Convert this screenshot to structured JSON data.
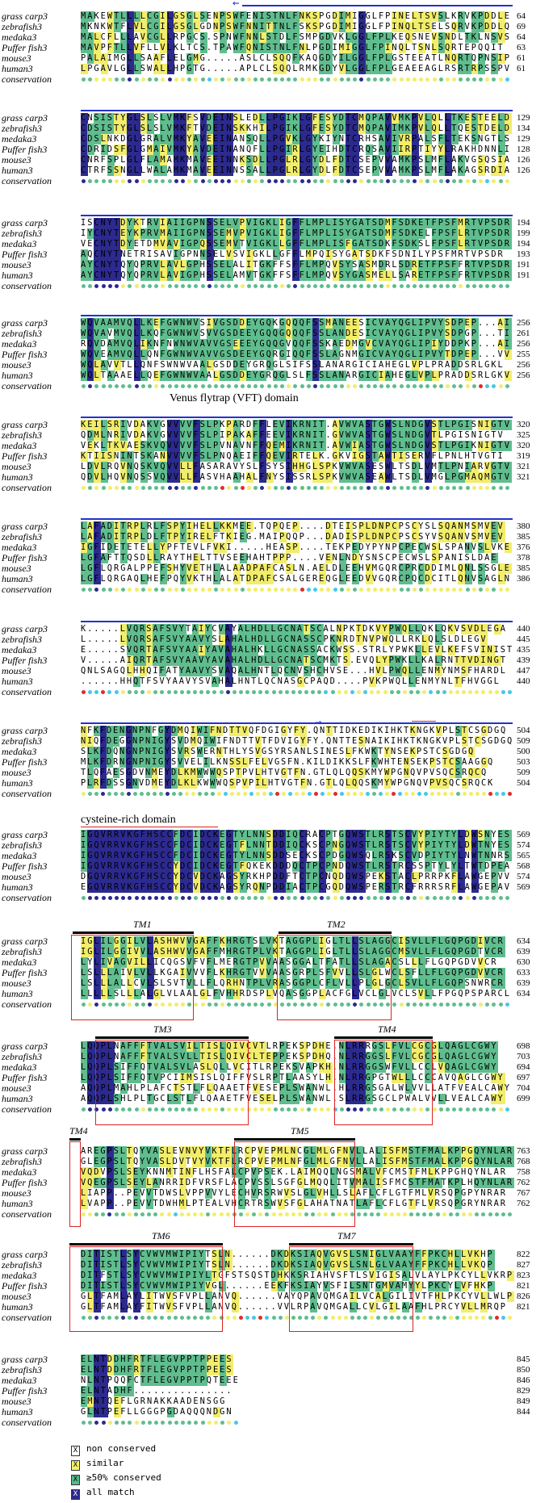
{
  "species": [
    "grass carp3",
    "zebrafish3",
    "medaka3",
    "Puffer fish3",
    "mouse3",
    "human3"
  ],
  "conservation_label": "conservation",
  "blocks": [
    {
      "rows": [
        "MAKEWTLLLLCGILGSGLSENPSWFENISTNLFNKSPGDIMIGGLFPINELTSVSLKRVKPDDLE",
        "MKNKWTFLVLCGILGSGLGDNPSWFNNITTNLFSKSPGDIMIGGLFPINQLTSELSQRVKPDDLQ",
        "MALCFLLLAVCGLLRPGCS.SPNWFNNLSTDLFSMPGDVKLGGLFPLKEQSNEVSNDLTKLNSVS",
        "MAVPFTLLVFLLVLKLTCS.TPAWFQNISTNLFNLPGDIMIGGLFPINQLTSNLSQRTEPQQIT",
        "PALAIMGLLSAAFLELGMG.....ASLCLSQQFKAQGDYILGGLFPLGSTEEATLNQRTQPNSIP",
        "LPGAVLGLLSWALLHPGTG.....APLCLSQQLRMKGDYVLGGLFPLGEAEEAGLRSRTRPSSPV"
      ],
      "nums": [
        "64",
        "69",
        "64",
        "63",
        "61",
        "61"
      ]
    },
    {
      "rows": [
        "CNSISTYGLSLSLVMKFSVDEINSLEDLLPGIKLGFESYDTCMQPAVVMKPVLQLLTKESTEELD",
        "CDSISTYGLSLSLVMKFTVDEINSKKHILPGIKLGFESYDTCMQPAVIMKPVLQLLTQESTDELD",
        "CDSLNKDGLGRALVMKYAVEEINANSQLLPGVKLGYKIYNTCRHSAVIVRPALSFLTEKSNGTLS",
        "CDRIDSFGLGMAIVMKYAVDEINANQFLLPGIRLGYEIHDTCRQSAVIIRPTIYYLRAKHDNNLI",
        "CNRFSPLGLFLAMAMKMAVEEINNKSDLLPGLRLGYDLFDTCSEPVVAMKPSLMFLAKVGSQSIA",
        "CTRFSSNGLLWALAMKMAVEEINNSSALLPGLRLGYDLFDTCSEPVVAMKPSLMFLAKAGSRDIA"
      ],
      "nums": [
        "129",
        "134",
        "129",
        "128",
        "126",
        "126"
      ]
    },
    {
      "rows": [
        "ISCNYTDYKTRVIAIIGPNSSELVPVIGKLIGFFLMPLISYGATSDMFSDKETFPSFMRTVPSDR",
        "IYCNYTEYKPRVMAIIGPNSSEMVPVIGKLIGFFLMPLISYGATSDMFSDKELFPSFLRTVPSDR",
        "VECNYTDYETDMVAVIGPQSSEMVTVIGKLLGFFLMPLISFGATSDKFSDKSLFPSFLRTVPSDR",
        "AQCNYTNETRISAVIGPNNSELVSVIGKLLGFFLMPQISYGATSDKFSDNILYPSFMRTVPSDR",
        "AYCNYTQYQPRVLAVLGPHSSELALITGKFFSFFLMPQVSYSASMDRLSDRETFPSFFRTVPSDR",
        "AYCNYTQYQPRVLAVIGPHSSELAMVTGKFFSFFLMPQVSYGASMELLSARETFPSFFRTVPSDR"
      ],
      "nums": [
        "194",
        "199",
        "194",
        "193",
        "191",
        "191"
      ]
    },
    {
      "rows": [
        "WQVAAMVQLLKEFGWNWVSIVGSDDEYGQKGQQQFSSMANEESICVAYQGLIPVYSDPEP...AI",
        "WQVAVMVQLLKQFGWNWVSVVGSDEEYGQQGQQQFSSLANDESICVAYQGLIPVYSDPGP...TI",
        "RQVDAMVQLIKNFNWNWVAVVGSEEEYGQQGVQQFSSKAEDMGVCVAYQGLIPIYDDPKP...AI",
        "WQVEAMVQLLQNFGWNWVAVVGSDEEYGQRGIQQFSSLAGNMGICVAYQGLIPVYTDPEP...VV",
        "WQLAVVTLLQNFSWNWVAALGSDDEYGRQGLSIFSSLANARGICIAHEGLVPLPRADDSRLGKL",
        "WQLTAAAELLQEFGWNWVAALGSDDEYGRQGLSLFSSLANARGICIAHEGLVPLPRADDSRLGKV"
      ],
      "nums": [
        "256",
        "261",
        "256",
        "255",
        "256",
        "256"
      ]
    },
    {
      "rows": [
        "KEILSRIVDAKVGVVVVFSLPKPARDFFLEVIKRNIT.AVWVASTGWSLNDGVSTLPGISNIGTV",
        "QDMLNRIVDAKVGVVVVFSLPIPAKAFFEEVIKRNIT.GVWVASTGWSLNDGVTLPGISNIGTV",
        "VEKLTKVAESKVQVVVVFSLPVNAVNFFQEMIKRNIT.AVWIASTGWSLNDGVSTLPGIKNIGTV",
        "KTIISNINTSKANVVVVFSLPNQAEIFFQEVIRTELK.GKVIGSTAWTISERVFLPNLHTVGTI",
        "LDVLRQVNQSKVQVVLLFASARAVYSLFSYSIHHGLSPKVWVASESWLTSDLVMTLPNIARVGTV",
        "QDVLHQVNQSSVQVVLLFASVHAAHALFNYSISSRLSPKVWVASEAWLTSDLVMGLPGMAQMGTV"
      ],
      "nums": [
        "320",
        "325",
        "320",
        "319",
        "321",
        "321"
      ]
    },
    {
      "rows": [
        "LAFADITRPLRLFSPYIHELLKKMEE.TQPQEP....DTEISPLDNPCPSCYSLSQANMSMVEV",
        "LAFADITRPLDLFTPYIRELFTKIEG.MAIPQQP...DADISPLDNPCPSCSYVSQANVSMVEV",
        "IGFIDETETELLYPFTEVLFVKI.....HEASP....TEKPEDYPYNPCPECWSLSPANVSLVKE",
        "LGFAFTTQSDLLRAYTHELTTVSEEHAHTPPP....VENLNDYSNSCPECWSLSPANISLDAE",
        "LGFLQRGALPPEFSHYVETHLALAADPAFCASLN.AELDLEEHVMGQRCPRCDDIMLQNLSSGLE",
        "LGFLQRGAQLHEFPQYVKTHLALATDPAFCSALGEREQGLEEDVVGQRCPQCDCITLQNVSAGLN"
      ],
      "nums": [
        "380",
        "385",
        "376",
        "378",
        "385",
        "386"
      ]
    },
    {
      "rows": [
        "K.....LVQRSAFSVYTAIYCVAYALHDLLGCNATSCALNPKTDKVYPWQLLQKLQKVSVDLEGA",
        "L.....LVQRSAFSVYAAVYSLAHALHDLLGCNASSCPKNRDTNVPWQLLRKLQLSLDLEGV",
        "E.....SVQRTAFSVYAAIYAVAHALHKLLGCNASSACKWSS.STRLYPWKLLEVLKEFSVINIST",
        "V.....AIQRTAFSVYAAVYAVAHALHDLLGCNATSCMKTS.EVQLYPWKLLKALRNTTVDINGT",
        "QNLSAGQLHHQIFATYAAVYSVAQALHNTLQCNVSHCHVSE...HVLPWQLLENMYNMSFHARDL",
        "......HHQTFSVYAAVYSVAHALHNTLQCNASGCPAQD....PVKPWQLLENMYNLTFHVGGL"
      ],
      "nums": [
        "440",
        "445",
        "435",
        "439",
        "447",
        "440"
      ]
    },
    {
      "rows": [
        "NFKFDENGNPNFGYDMQIWIFNDTTVQFDGIGYFY.QNTTIDKEDIKIHKTKNGKVPLSTCSGDGQ",
        "NIQFDEGGNPNIGYSVDMQIWIFNDTTVTFDVIGYFY.QNTTESNAIKIHKTKNGKVPLSTCSGDGQ",
        "SLKFDQNGNPNIGYSVRSWERNTHLYSVGSYRSANLSINESLFKWKTYNSEKPSTCSGDGQ",
        "MLKFDRNGNPNIGYSVVELILKNSSLFELVGSFN.KILDIKKSLFKWHTENSEKPSTCSAAGGQ",
        "TLQFAESGDVNMEYDLKMWWWQSPTPVLHTVGTFN.GTLQLQQSKMYWPGNQVPVSQCSRQCQ",
        "PLRFDSSGNVDMEYDLKLKWWWQSPVPILHTVGTFN.GTLQLQQSKMYWPGNQVPVSQCSRQCK"
      ],
      "nums": [
        "504",
        "509",
        "500",
        "503",
        "509",
        "504"
      ]
    },
    {
      "rows": [
        "IGQVRRVKGFHSCCFDCIDCKEGTYLNNSDDIQCRACPTGQWSTLRSTSCVYPIYTYLDWSNYES",
        "IGQVRRVKGFHSCCFDCIDCKEGTFLNNTDDIQCKSCPNGQWSTLRSTSCVYPIYTYLDWTNYES",
        "IGQVRRVKGFHSCCFDCIDCKEGTYLNNSDDSECKSCPDGQWSQLRSKSCVDPIYTYLNWTNNRS",
        "IGQVRRVKGFHSCCYDCIDCKEGTFQKEKDDDQCTPCPNDQWSTLRSTRCSSPTYLYLTWTDPEA",
        "DGQVRRVKGFHSCCYDCVDCKAGSYRKHPDDFTCTPCNQDQWSPEKSTACLPRRPKFLAWGEPVV",
        "EGQVRRVKGFHSCCYDCVDCKAGSYRQNPDDIACTPCGQDQWSPERSTRCFRRRSRFLAWGEPAV"
      ],
      "nums": [
        "569",
        "574",
        "565",
        "568",
        "574",
        "569"
      ]
    },
    {
      "rows": [
        "IGLILGGILVLASHWVVGAFFKHRGTSLVKTAGGPLIGLTLLSLAGGCISVLLFLGQPGDIVCR",
        "IGLILGGIVVLASHWVVGAFFMHRGTPLVKTAGGPLIGLTLLSLAGGCMSVLLFLGQPGDTVCR",
        "LYLIVAGVILLICQGSVFVFLMERGTPVVAASGGALTFATLLSLAGACSLLLFLGQPGDVVCR",
        "LSLLLAIVLVLLKGAIVVVFLKHRGTVVVAASGRPLSFVVLLSLGLWCLSFLLFLGQPGDVVCR",
        "LSLLLALLCVLSLSVTVLLFLQRHNTPLVRASGGPLCFLVLLPLGLGCLSVLLFLGQPSNWRCR",
        "LLLLLSLLLALGLVLAALGLFVHHRDSPLVQASGGPLACFGLVCLGLVCLSVLLFPGQPSPARCL"
      ],
      "nums": [
        "634",
        "639",
        "630",
        "633",
        "639",
        "634"
      ]
    },
    {
      "rows": [
        "LQQPLNAFFFTVALSVILTISLQIVCVTLRPEKSPDHE.NLRRRGSLFVLCGCGLQAGLCGWY",
        "LQQPLNAFFFTVALSVLLTISLQIVCLTEPPEKSPDHQ.NLRRGGSLFVLCGCGLQAGLCGWY",
        "LQQPLSIFFQTVALSVLASLQLLVCITLRPEKSVAPKH.NLRRGGSWFVLLCCLVQAGLCGWY",
        "LQQPLSIFFQTVPCIIMSISLQIFFVSLRPTLAASYLH.NLRRGPGTWLLLCCCAVQAGLCGWY",
        "AQQPLMAHLPLAFCTSTLFLQAAETFVESEPLSWANWL.HLRRGSGALWLVVLLATFVEALCAWY",
        "AQQPLSHLPLTGCLSTLFLQAAETFVESELPLSWANWL.SLRRGSGCLPWALVVLLVEALCAWY"
      ],
      "nums": [
        "698",
        "703",
        "694",
        "697",
        "704",
        "699"
      ]
    },
    {
      "rows": [
        "AREGPSLTQYVASLEVNVYVKTFLRCPVEPMLNCGLMLGFNVLLALISFMSTFMALKPPGQYNLAR",
        "GLEGPSLTQYVASLDVTVYVKTFLRCPVEPMLNFGLMLGFNVLLALISFMSTFMALKPPGQYNLAR",
        "VQDVPSLSEYKNNMTINFLHSFALCPVPSEK.LAIMQQLNGSMALVFCMSTFMLKPPGHQYNLAR",
        "VQEGPSLSEYLANRRIDFVRSFLACPVSSLSGFGLMQQLITVMALISFMCSTFMATKPLHQYNLAR",
        "LIAPP..PEVVTDWSLVPPVVYLECHVRSRWVSLGLVHLLSLAFLCFLGTFMLVRSQPGPYNRAR",
        "LVAPP..PEVVTDWHMLPTEALVHCRTRSWVSFGLAHATNATLAFLCFLGTFLVRSQPGRYNRAR"
      ],
      "nums": [
        "763",
        "768",
        "758",
        "762",
        "767",
        "762"
      ]
    },
    {
      "rows": [
        "DITISTLSYCVWVMWIPIYTSLN......DKDKSIAQVGVSLSNIGLVAAYFFPKCHLLVKHP",
        "DITISTLSYCVWVMWIPIYTSLN......DKDKSIAQVGVSLSNLGLVAAYFFPKCHLLVKQP",
        "DITFSTLSYCVWVMWIPIYLTGFSTSQSTDHKKSRIAHVSFTLSVIGISALVLAYLPKCYLLVKRP",
        "DITISTLSYCVWVMWIPIYVGL......EEKFKSIAYVSFILSNTGMVAMYYLPKCYLVFHKP",
        "GLTFAMLAYLITWVSFVPLLANVQ......VAYQPAVQMGAILVCALGILIVTFHLPKCYVLLWLP",
        "GLTFAMLAYFITWVSFVPLLANVQ......VVLRPAVQMGALLCVLGILAAFHLPRCYVLLMRQP"
      ],
      "nums": [
        "822",
        "827",
        "823",
        "821",
        "826",
        "821"
      ]
    },
    {
      "rows": [
        "ELNTDDHFRTFLEGVPPTPPEES",
        "ELNTDDHFRTFLEGVPPTPPEES",
        "NLNTPQQFCTFLEGVPPTPQTEEE",
        "ELNTADHF...............",
        "EMNTQEFLGRNAKKAADENSGG",
        "GLNTPEFLLGGGPGDAQQQNDGN"
      ],
      "nums": [
        "845",
        "850",
        "846",
        "829",
        "849",
        "844"
      ]
    }
  ],
  "annotations": {
    "vft_domain": "Venus flytrap (VFT) domain",
    "cys_domain": "cysteine-rich domain",
    "tm": [
      "TM1",
      "TM2",
      "TM3",
      "TM4",
      "TM4",
      "TM5",
      "TM6",
      "TM7"
    ]
  },
  "legend": [
    {
      "symbol": "X",
      "label": "non conserved",
      "color": "#ffffff",
      "text": "#000000"
    },
    {
      "symbol": "X",
      "label": "similar",
      "color": "#f5f16a",
      "text": "#000000"
    },
    {
      "symbol": "X",
      "label": "≥50% conserved",
      "color": "#58b88c",
      "text": "#000000"
    },
    {
      "symbol": "X",
      "label": "all match",
      "color": "#2c2a8f",
      "text": "#ffffff"
    }
  ],
  "colors": {
    "all": "#2c2a8f",
    "cons": "#5fbd8e",
    "sim": "#f2ed6a",
    "none": "#ffffff",
    "line": "#2233cc",
    "tm": "#d22222"
  }
}
